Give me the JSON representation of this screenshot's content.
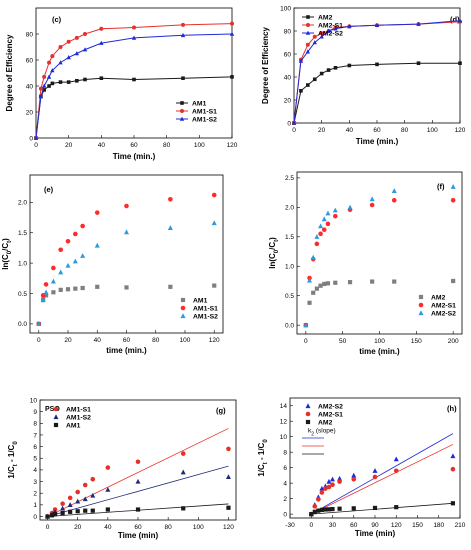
{
  "colors": {
    "black": "#1a1a1a",
    "red": "#e8302a",
    "blue": "#1f2bd6",
    "gray": "#7f7f7f",
    "lightblue": "#2a9be0",
    "darkblue": "#1f2a7a",
    "brightred": "#ff2a2a"
  },
  "chart_data": [
    {
      "id": "c",
      "type": "line",
      "panel_label": "(c)",
      "xlabel": "Time (min.)",
      "ylabel": "Degree of Efficiency",
      "xlim": [
        0,
        120
      ],
      "ylim": [
        0,
        100
      ],
      "xticks": [
        0,
        20,
        40,
        60,
        80,
        100,
        120
      ],
      "yticks": [
        0,
        20,
        40,
        60,
        80
      ],
      "legend_position": "center-right",
      "series": [
        {
          "name": "AM1",
          "color": "#1a1a1a",
          "marker": "square",
          "x": [
            0,
            3,
            5,
            8,
            10,
            15,
            20,
            25,
            30,
            40,
            60,
            90,
            120
          ],
          "y": [
            0,
            32,
            37,
            40,
            42,
            43,
            43,
            44,
            45,
            46,
            45,
            46,
            47
          ]
        },
        {
          "name": "AM1-S1",
          "color": "#e8302a",
          "marker": "circle",
          "x": [
            0,
            3,
            5,
            8,
            10,
            15,
            20,
            25,
            30,
            40,
            60,
            90,
            120
          ],
          "y": [
            0,
            38,
            47,
            58,
            63,
            70,
            74,
            77,
            80,
            84,
            85,
            87,
            88
          ]
        },
        {
          "name": "AM1-S2",
          "color": "#1f2bd6",
          "marker": "triangle",
          "x": [
            0,
            3,
            5,
            8,
            10,
            15,
            20,
            25,
            30,
            40,
            60,
            90,
            120
          ],
          "y": [
            0,
            32,
            40,
            47,
            52,
            58,
            62,
            65,
            68,
            73,
            77,
            79,
            80
          ]
        }
      ]
    },
    {
      "id": "d",
      "type": "line",
      "panel_label": "(d)",
      "xlabel": "Time (min.)",
      "ylabel": "Degree of Efficiency",
      "xlim": [
        0,
        120
      ],
      "ylim": [
        0,
        100
      ],
      "xticks": [
        0,
        20,
        40,
        60,
        80,
        100,
        120
      ],
      "yticks": [
        0,
        20,
        40,
        60,
        80,
        100
      ],
      "legend_position": "top-left",
      "series": [
        {
          "name": "AM2",
          "color": "#1a1a1a",
          "marker": "square",
          "x": [
            0,
            5,
            10,
            15,
            20,
            25,
            30,
            40,
            60,
            90,
            120
          ],
          "y": [
            0,
            28,
            33,
            38,
            43,
            46,
            48,
            50,
            51,
            52,
            52
          ]
        },
        {
          "name": "AM2-S1",
          "color": "#e8302a",
          "marker": "circle",
          "x": [
            0,
            5,
            10,
            15,
            20,
            25,
            30,
            40,
            60,
            90,
            120
          ],
          "y": [
            0,
            55,
            68,
            75,
            78,
            80,
            83,
            84,
            85,
            86,
            88
          ]
        },
        {
          "name": "AM2-S2",
          "color": "#1f2bd6",
          "marker": "triangle",
          "x": [
            0,
            5,
            10,
            15,
            20,
            25,
            30,
            40,
            60,
            90,
            120
          ],
          "y": [
            0,
            54,
            62,
            70,
            75,
            80,
            82,
            84,
            85,
            86,
            89
          ]
        }
      ]
    },
    {
      "id": "e",
      "type": "scatter",
      "panel_label": "(e)",
      "xlabel": "time (min.)",
      "ylabel": "ln(C0/Ct)",
      "xlim": [
        -6,
        126
      ],
      "ylim": [
        -0.15,
        2.45
      ],
      "xticks": [
        0,
        20,
        40,
        60,
        80,
        100,
        120
      ],
      "yticks": [
        0.0,
        0.5,
        1.0,
        1.5,
        2.0
      ],
      "ytick_labels": [
        "0.0",
        "0.5",
        "1.0",
        "1.5",
        "2.0"
      ],
      "legend_position": "bottom-right",
      "series": [
        {
          "name": "AM1",
          "color": "#7f7f7f",
          "marker": "square",
          "x": [
            0,
            3,
            5,
            10,
            15,
            20,
            25,
            30,
            40,
            60,
            90,
            120
          ],
          "y": [
            0.0,
            0.4,
            0.47,
            0.52,
            0.56,
            0.57,
            0.58,
            0.59,
            0.61,
            0.6,
            0.61,
            0.63
          ]
        },
        {
          "name": "AM1-S1",
          "color": "#ff2a2a",
          "marker": "circle",
          "x": [
            0,
            3,
            5,
            10,
            15,
            20,
            25,
            30,
            40,
            60,
            90,
            120
          ],
          "y": [
            0.0,
            0.47,
            0.65,
            0.92,
            1.22,
            1.36,
            1.48,
            1.61,
            1.83,
            1.94,
            2.05,
            2.12
          ]
        },
        {
          "name": "AM1-S2",
          "color": "#2a9be0",
          "marker": "triangle",
          "x": [
            0,
            3,
            5,
            10,
            15,
            20,
            25,
            30,
            40,
            60,
            90,
            120
          ],
          "y": [
            0.0,
            0.39,
            0.52,
            0.7,
            0.85,
            0.96,
            1.03,
            1.12,
            1.29,
            1.51,
            1.58,
            1.66
          ]
        }
      ]
    },
    {
      "id": "f",
      "type": "scatter",
      "panel_label": "(f)",
      "xlabel": "time (min.)",
      "ylabel": "ln(C0/Ct)",
      "xlim": [
        -12,
        212
      ],
      "ylim": [
        -0.15,
        2.6
      ],
      "xticks": [
        0,
        50,
        100,
        150,
        200
      ],
      "yticks": [
        0.0,
        0.5,
        1.0,
        1.5,
        2.0,
        2.5
      ],
      "ytick_labels": [
        "0.0",
        "0.5",
        "1.0",
        "1.5",
        "2.0",
        "2.5"
      ],
      "legend_position": "bottom-right",
      "series": [
        {
          "name": "AM2",
          "color": "#7f7f7f",
          "marker": "square",
          "x": [
            0,
            5,
            10,
            15,
            20,
            25,
            30,
            40,
            60,
            90,
            120,
            200
          ],
          "y": [
            0.0,
            0.38,
            0.55,
            0.62,
            0.67,
            0.7,
            0.71,
            0.72,
            0.73,
            0.74,
            0.74,
            0.75
          ]
        },
        {
          "name": "AM2-S1",
          "color": "#ff2a2a",
          "marker": "circle",
          "x": [
            0,
            5,
            10,
            15,
            20,
            25,
            30,
            40,
            60,
            90,
            120,
            200
          ],
          "y": [
            0.0,
            0.8,
            1.12,
            1.38,
            1.55,
            1.62,
            1.72,
            1.85,
            1.96,
            2.04,
            2.12,
            2.12
          ]
        },
        {
          "name": "AM2-S2",
          "color": "#2a9be0",
          "marker": "triangle",
          "x": [
            0,
            5,
            10,
            15,
            20,
            25,
            30,
            40,
            60,
            90,
            120,
            200
          ],
          "y": [
            0.0,
            0.76,
            1.15,
            1.5,
            1.68,
            1.8,
            1.9,
            1.95,
            2.0,
            2.14,
            2.28,
            2.35
          ]
        }
      ]
    },
    {
      "id": "g",
      "type": "scatter",
      "panel_label": "(g)",
      "annotation": "PSO",
      "xlabel": "Time (min)",
      "ylabel": "1/Ct - 1/C0",
      "xlim": [
        -5,
        125
      ],
      "ylim": [
        -0.3,
        10
      ],
      "xticks": [
        0,
        20,
        40,
        60,
        80,
        100,
        120
      ],
      "yticks": [
        0,
        1,
        2,
        3,
        4,
        5,
        6,
        7,
        8,
        9,
        10
      ],
      "legend_position": "top-left",
      "series": [
        {
          "name": "AM1-S1",
          "color": "#e8302a",
          "marker": "circle",
          "x": [
            0,
            3,
            5,
            10,
            15,
            20,
            25,
            30,
            40,
            60,
            90,
            120
          ],
          "y": [
            0,
            0.3,
            0.6,
            1.1,
            1.6,
            2.1,
            2.7,
            3.2,
            4.2,
            4.7,
            5.4,
            5.8
          ],
          "fit": [
            0,
            0.063
          ]
        },
        {
          "name": "AM1-S2",
          "color": "#1f2a7a",
          "marker": "triangle",
          "x": [
            0,
            3,
            5,
            10,
            15,
            20,
            25,
            30,
            40,
            60,
            90,
            120
          ],
          "y": [
            0,
            0.2,
            0.4,
            0.7,
            1.0,
            1.3,
            1.5,
            1.8,
            2.3,
            3.0,
            3.8,
            3.4
          ],
          "fit": [
            0,
            0.036
          ]
        },
        {
          "name": "AM1",
          "color": "#1a1a1a",
          "marker": "square",
          "x": [
            0,
            3,
            5,
            10,
            15,
            20,
            25,
            30,
            40,
            60,
            90,
            120
          ],
          "y": [
            0,
            0.1,
            0.2,
            0.3,
            0.4,
            0.45,
            0.5,
            0.5,
            0.6,
            0.6,
            0.7,
            0.75
          ],
          "fit": [
            0,
            0.009
          ]
        }
      ]
    },
    {
      "id": "h",
      "type": "scatter",
      "panel_label": "(h)",
      "xlabel": "Time (min)",
      "ylabel": "1/Ct - 1/C0",
      "xlim": [
        -30,
        210
      ],
      "ylim": [
        -0.5,
        15
      ],
      "xticks": [
        -30,
        0,
        30,
        60,
        90,
        120,
        150,
        180,
        210
      ],
      "yticks": [
        0,
        2,
        4,
        6,
        8,
        10,
        12,
        14
      ],
      "legend_position": "top-left",
      "fit_legend_label": "k2 (slope)",
      "series": [
        {
          "name": "AM2-S2",
          "color": "#1f2bd6",
          "marker": "triangle",
          "x": [
            0,
            5,
            10,
            15,
            20,
            25,
            30,
            40,
            60,
            90,
            120,
            200
          ],
          "y": [
            0,
            1.2,
            2.2,
            3.3,
            3.6,
            4.2,
            4.5,
            4.6,
            5.0,
            5.6,
            7.1,
            7.5
          ],
          "fit": [
            0,
            0.052
          ]
        },
        {
          "name": "AM2-S1",
          "color": "#e8302a",
          "marker": "circle",
          "x": [
            0,
            5,
            10,
            15,
            20,
            25,
            30,
            40,
            60,
            90,
            120,
            200
          ],
          "y": [
            0,
            1.0,
            1.9,
            2.8,
            3.3,
            3.5,
            3.8,
            4.2,
            4.5,
            4.8,
            5.6,
            5.8
          ],
          "fit": [
            0,
            0.045
          ]
        },
        {
          "name": "AM2",
          "color": "#1a1a1a",
          "marker": "square",
          "x": [
            0,
            5,
            10,
            15,
            20,
            25,
            30,
            40,
            60,
            90,
            120,
            200
          ],
          "y": [
            0,
            0.3,
            0.45,
            0.55,
            0.6,
            0.62,
            0.65,
            0.7,
            0.75,
            0.8,
            0.9,
            1.4
          ],
          "fit": [
            0,
            0.007
          ]
        }
      ]
    }
  ]
}
